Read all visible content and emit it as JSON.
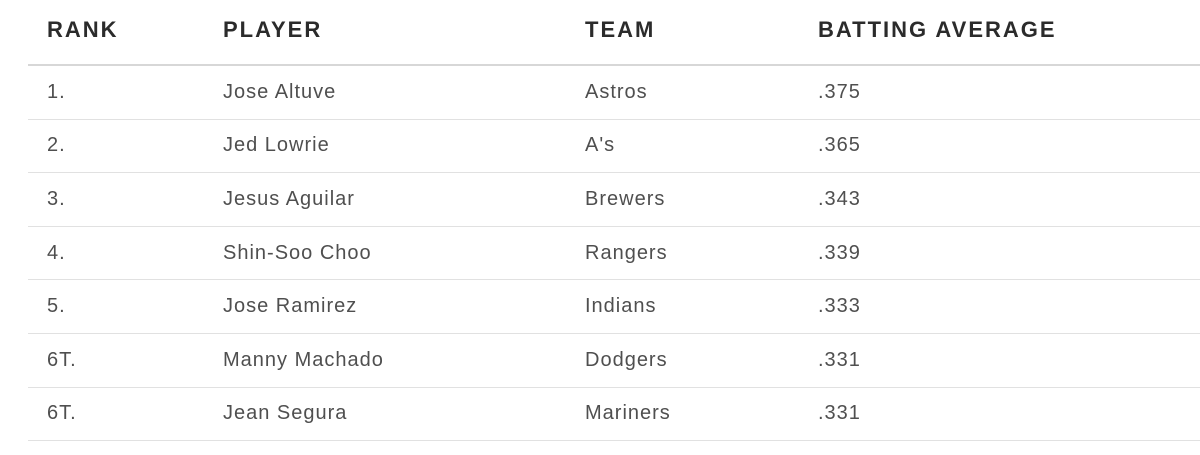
{
  "table": {
    "headers": {
      "rank": "RANK",
      "player": "PLAYER",
      "team": "TEAM",
      "batting_average": "BATTING AVERAGE"
    },
    "rows": [
      {
        "rank": "1.",
        "player": "Jose Altuve",
        "team": "Astros",
        "avg": ".375"
      },
      {
        "rank": "2.",
        "player": "Jed Lowrie",
        "team": "A's",
        "avg": ".365"
      },
      {
        "rank": "3.",
        "player": "Jesus Aguilar",
        "team": "Brewers",
        "avg": ".343"
      },
      {
        "rank": "4.",
        "player": "Shin-Soo Choo",
        "team": "Rangers",
        "avg": ".339"
      },
      {
        "rank": "5.",
        "player": "Jose Ramirez",
        "team": "Indians",
        "avg": ".333"
      },
      {
        "rank": "6T.",
        "player": "Manny Machado",
        "team": "Dodgers",
        "avg": ".331"
      },
      {
        "rank": "6T.",
        "player": "Jean Segura",
        "team": "Mariners",
        "avg": ".331"
      }
    ]
  },
  "chart_data": {
    "type": "table",
    "columns": [
      "RANK",
      "PLAYER",
      "TEAM",
      "BATTING AVERAGE"
    ],
    "rows": [
      [
        "1.",
        "Jose Altuve",
        "Astros",
        ".375"
      ],
      [
        "2.",
        "Jed Lowrie",
        "A's",
        ".365"
      ],
      [
        "3.",
        "Jesus Aguilar",
        "Brewers",
        ".343"
      ],
      [
        "4.",
        "Shin-Soo Choo",
        "Rangers",
        ".339"
      ],
      [
        "5.",
        "Jose Ramirez",
        "Indians",
        ".333"
      ],
      [
        "6T.",
        "Manny Machado",
        "Dodgers",
        ".331"
      ],
      [
        "6T.",
        "Jean Segura",
        "Mariners",
        ".331"
      ]
    ],
    "batting_average_values": [
      0.375,
      0.365,
      0.343,
      0.339,
      0.333,
      0.331,
      0.331
    ]
  },
  "colors": {
    "background": "#ffffff",
    "header_text": "#2b2b2b",
    "body_text": "#4f4f4f",
    "header_rule": "#d7d7d7",
    "row_rule": "#e1e1e1"
  }
}
